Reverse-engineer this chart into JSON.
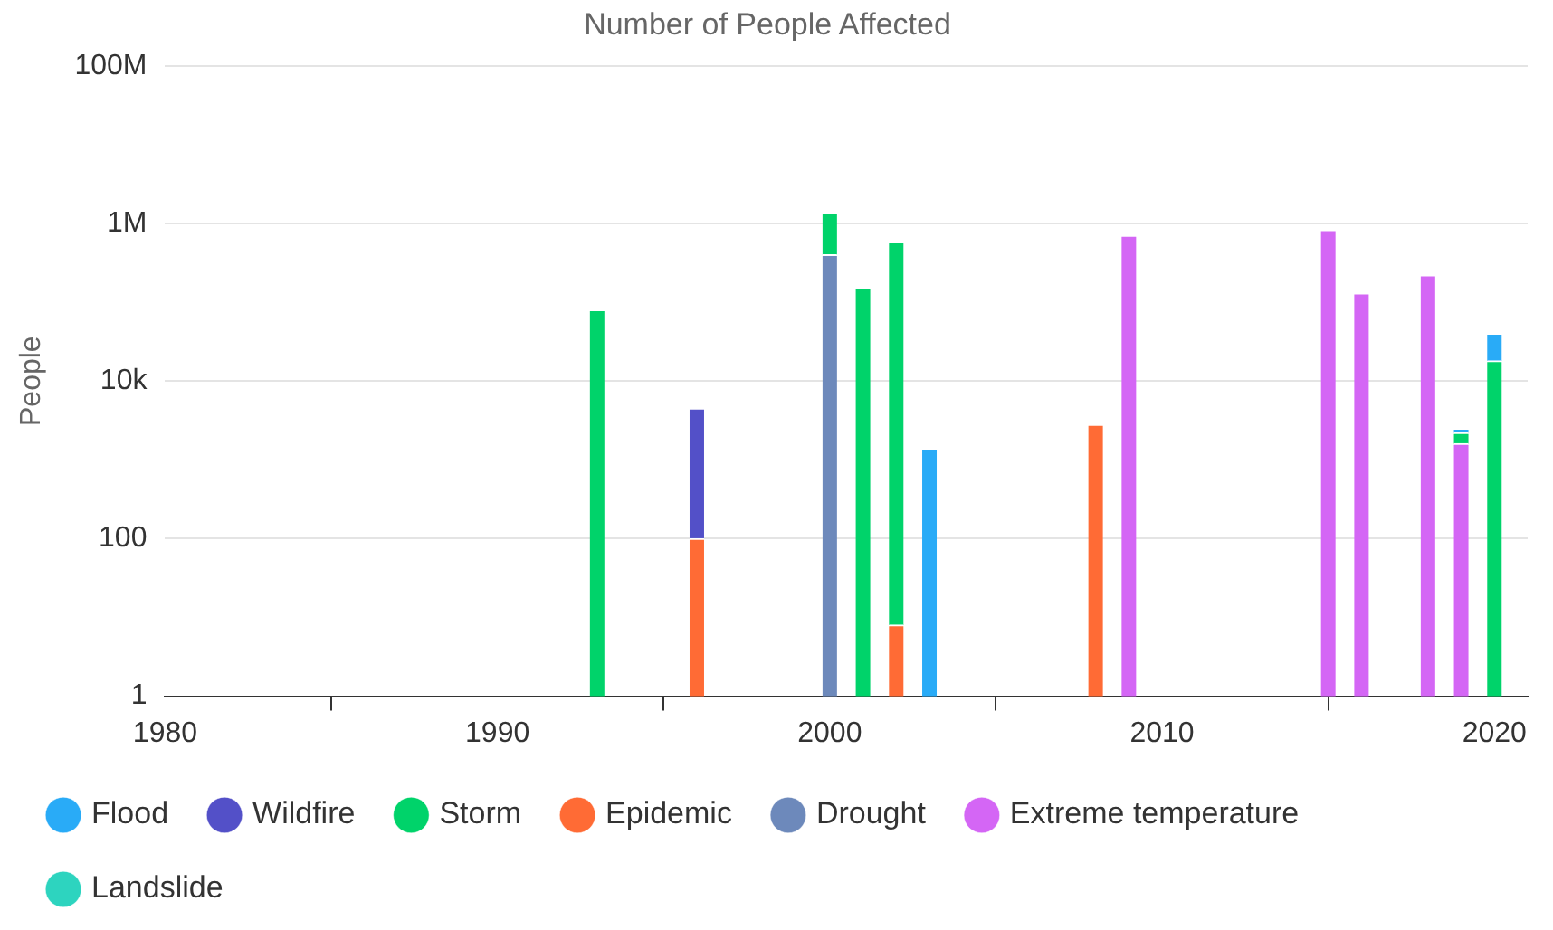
{
  "chart_data": {
    "type": "bar",
    "title": "Number of People Affected",
    "ylabel": "People",
    "stacked": true,
    "log": "y",
    "grid": "y",
    "legend": "bottom",
    "x": [
      1993,
      1996,
      2000,
      2001,
      2002,
      2003,
      2008,
      2009,
      2015,
      2016,
      2018,
      2019,
      2020
    ],
    "xlim": [
      1980,
      2021
    ],
    "xticks": [
      1980,
      1990,
      2000,
      2010,
      2020
    ],
    "ylim": [
      1,
      100000000
    ],
    "yticks": [
      {
        "value": 1,
        "label": "1"
      },
      {
        "value": 100,
        "label": "100"
      },
      {
        "value": 10000,
        "label": "10k"
      },
      {
        "value": 1000000,
        "label": "1M"
      },
      {
        "value": 100000000,
        "label": "100M"
      }
    ],
    "series": [
      {
        "name": "Landslide",
        "color": "#2dd4bf",
        "values": [
          null,
          null,
          null,
          null,
          null,
          null,
          null,
          null,
          null,
          null,
          null,
          null,
          null
        ]
      },
      {
        "name": "Extreme temperature",
        "color": "#d466f5",
        "values": [
          null,
          null,
          null,
          null,
          null,
          null,
          null,
          700000,
          830000,
          130000,
          220000,
          1600,
          null
        ]
      },
      {
        "name": "Drought",
        "color": "#6d89bb",
        "values": [
          null,
          null,
          400000,
          null,
          null,
          null,
          null,
          null,
          null,
          null,
          null,
          null,
          null
        ]
      },
      {
        "name": "Epidemic",
        "color": "#ff6b35",
        "values": [
          null,
          100,
          null,
          null,
          8,
          null,
          2800,
          null,
          null,
          null,
          null,
          null,
          null
        ]
      },
      {
        "name": "Storm",
        "color": "#00d36a",
        "values": [
          80000,
          null,
          950000,
          150000,
          580000,
          null,
          null,
          null,
          null,
          null,
          null,
          600,
          18000
        ]
      },
      {
        "name": "Wildfire",
        "color": "#5350c8",
        "values": [
          null,
          4400,
          null,
          null,
          null,
          null,
          null,
          null,
          null,
          null,
          null,
          null,
          null
        ]
      },
      {
        "name": "Flood",
        "color": "#29abf7",
        "values": [
          null,
          null,
          null,
          null,
          null,
          1400,
          null,
          null,
          null,
          null,
          null,
          300,
          22000
        ]
      }
    ]
  }
}
